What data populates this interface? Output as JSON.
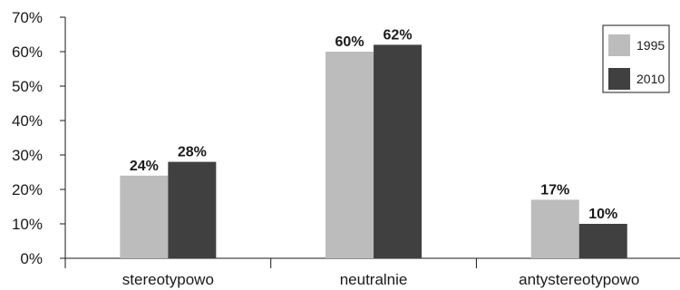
{
  "chart_data": {
    "type": "bar",
    "categories": [
      "stereotypowo",
      "neutralnie",
      "antystereotypowo"
    ],
    "series": [
      {
        "name": "1995",
        "values": [
          24,
          60,
          17
        ],
        "color": "#bcbcbc"
      },
      {
        "name": "2010",
        "values": [
          28,
          62,
          10
        ],
        "color": "#404040"
      }
    ],
    "data_labels": [
      [
        "24%",
        "60%",
        "17%"
      ],
      [
        "28%",
        "62%",
        "10%"
      ]
    ],
    "ylim": [
      0,
      70
    ],
    "yticks": [
      {
        "value": 0,
        "label": "0%"
      },
      {
        "value": 10,
        "label": "10%"
      },
      {
        "value": 20,
        "label": "20%"
      },
      {
        "value": 30,
        "label": "30%"
      },
      {
        "value": 40,
        "label": "40%"
      },
      {
        "value": 50,
        "label": "50%"
      },
      {
        "value": 60,
        "label": "60%"
      },
      {
        "value": 70,
        "label": "70%"
      }
    ],
    "grid": false,
    "legend_position": "top-right"
  }
}
